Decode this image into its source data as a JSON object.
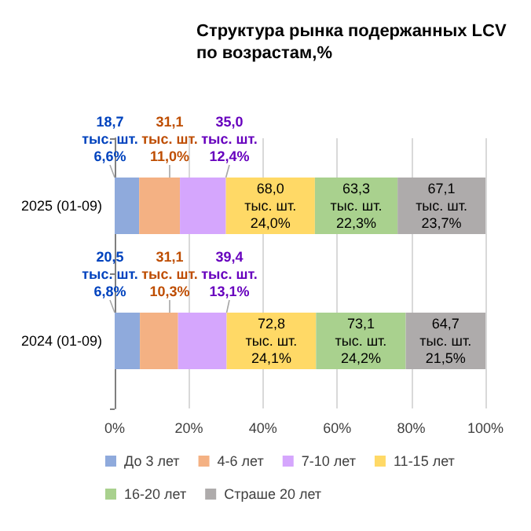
{
  "chart_data": {
    "type": "bar",
    "orientation": "horizontal",
    "stacked": true,
    "title": "Структура рынка подержанных LCV\nпо возрастам,%",
    "categories": [
      "2025 (01-09)",
      "2024 (01-09)"
    ],
    "series": [
      {
        "name": "До 3 лет",
        "color": "#8faadc",
        "values": [
          6.6,
          6.8
        ],
        "value_labels": [
          "18,7\nтыс. шт.\n6,6%",
          "20,5\nтыс. шт.\n6,8%"
        ]
      },
      {
        "name": "4-6 лет",
        "color": "#f4b183",
        "values": [
          11.0,
          10.3
        ],
        "value_labels": [
          "31,1\nтыс. шт.\n11,0%",
          "31,1\nтыс. шт.\n10,3%"
        ]
      },
      {
        "name": "7-10 лет",
        "color": "#d5a6fd",
        "values": [
          12.4,
          13.1
        ],
        "value_labels": [
          "35,0\nтыс. шт.\n12,4%",
          "39,4\nтыс. шт.\n13,1%"
        ]
      },
      {
        "name": "11-15 лет",
        "color": "#ffd966",
        "values": [
          24.0,
          24.1
        ],
        "value_labels": [
          "68,0\nтыс. шт.\n24,0%",
          "72,8\nтыс. шт.\n24,1%"
        ]
      },
      {
        "name": "16-20 лет",
        "color": "#a9d18e",
        "values": [
          22.3,
          24.2
        ],
        "value_labels": [
          "63,3\nтыс. шт.\n22,3%",
          "73,1\nтыс. шт.\n24,2%"
        ]
      },
      {
        "name": "Страше 20 лет",
        "color": "#aeabab",
        "values": [
          23.7,
          21.5
        ],
        "value_labels": [
          "67,1\nтыс. шт.\n23,7%",
          "64,7\nтыс. шт.\n21,5%"
        ]
      }
    ],
    "xlim": [
      0,
      100
    ],
    "xticks": [
      {
        "value": 0,
        "label": "0%"
      },
      {
        "value": 20,
        "label": "20%"
      },
      {
        "value": 40,
        "label": "40%"
      },
      {
        "value": 60,
        "label": "60%"
      },
      {
        "value": 80,
        "label": "80%"
      },
      {
        "value": 100,
        "label": "100%"
      }
    ],
    "grid": "x",
    "legend": "bottom"
  }
}
